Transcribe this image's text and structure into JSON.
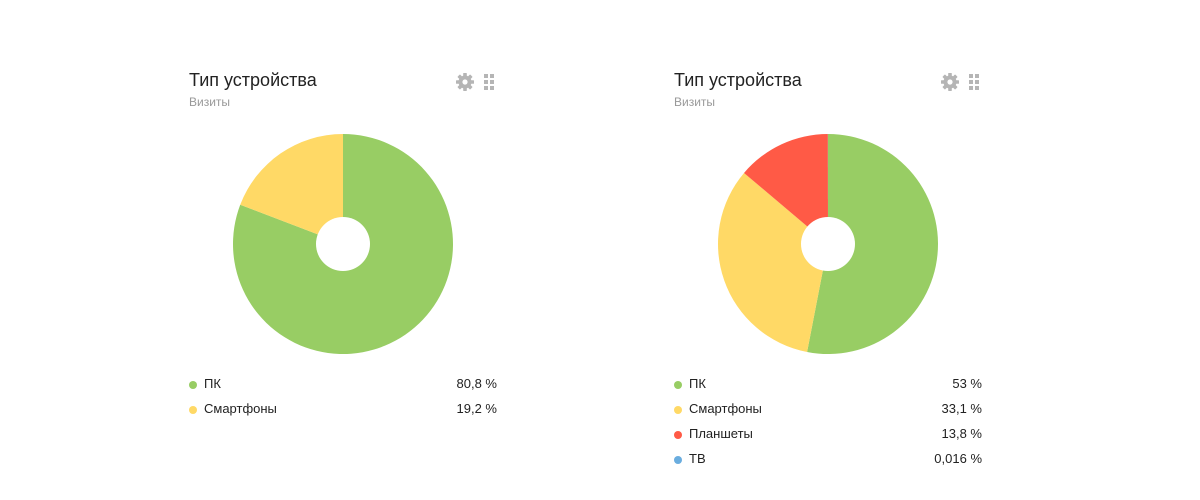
{
  "widgets": [
    {
      "title": "Тип устройства",
      "subtitle": "Визиты",
      "settings_icon": "gear-icon",
      "drag_icon": "drag-handle-icon",
      "legend": [
        {
          "label": "ПК",
          "value": "80,8 %",
          "color": "#98cd64"
        },
        {
          "label": "Смартфоны",
          "value": "19,2 %",
          "color": "#ffd966"
        }
      ]
    },
    {
      "title": "Тип устройства",
      "subtitle": "Визиты",
      "settings_icon": "gear-icon",
      "drag_icon": "drag-handle-icon",
      "legend": [
        {
          "label": "ПК",
          "value": "53 %",
          "color": "#98cd64"
        },
        {
          "label": "Смартфоны",
          "value": "33,1 %",
          "color": "#ffd966"
        },
        {
          "label": "Планшеты",
          "value": "13,8 %",
          "color": "#ff5a46"
        },
        {
          "label": "ТВ",
          "value": "0,016 %",
          "color": "#6aaddf"
        }
      ]
    }
  ],
  "chart_data": [
    {
      "type": "pie",
      "title": "Тип устройства",
      "subtitle": "Визиты",
      "categories": [
        "ПК",
        "Смартфоны"
      ],
      "values": [
        80.8,
        19.2
      ],
      "colors": [
        "#98cd64",
        "#ffd966"
      ],
      "donut": true,
      "legend_position": "bottom"
    },
    {
      "type": "pie",
      "title": "Тип устройства",
      "subtitle": "Визиты",
      "categories": [
        "ПК",
        "Смартфоны",
        "Планшеты",
        "ТВ"
      ],
      "values": [
        53,
        33.1,
        13.8,
        0.016
      ],
      "colors": [
        "#98cd64",
        "#ffd966",
        "#ff5a46",
        "#6aaddf"
      ],
      "donut": true,
      "legend_position": "bottom"
    }
  ]
}
